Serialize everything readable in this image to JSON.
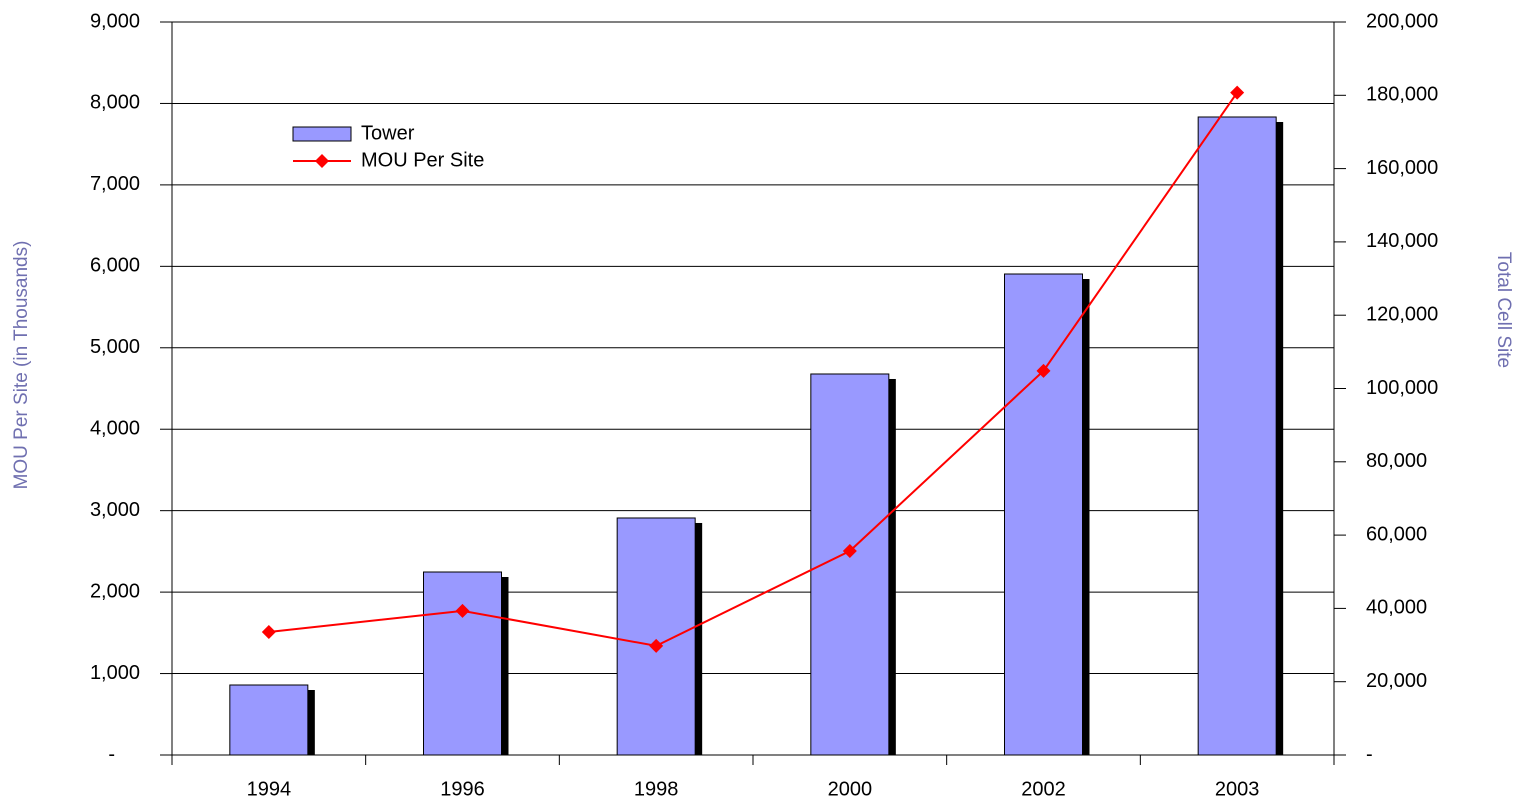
{
  "chart_data": {
    "type": "bar-line",
    "categories": [
      "1994",
      "1996",
      "1998",
      "2000",
      "2002",
      "2003"
    ],
    "y_label": "MOU Per Site (in Thousands)",
    "y2_label": "Total Cell Site",
    "series": [
      {
        "name": "Tower",
        "type": "bar",
        "axis": "y2",
        "color": "#9999ff",
        "values": [
          19100,
          49930,
          64670,
          103960,
          131240,
          174080
        ]
      },
      {
        "name": "MOU Per Site",
        "type": "line",
        "axis": "y",
        "color": "#ff0000",
        "values": [
          1510,
          1770,
          1340,
          2505,
          4717,
          8133
        ]
      }
    ],
    "ylim": [
      0,
      9000
    ],
    "yticks": [
      {
        "value": 0,
        "label": "-"
      },
      {
        "value": 1000,
        "label": "1,000"
      },
      {
        "value": 2000,
        "label": "2,000"
      },
      {
        "value": 3000,
        "label": "3,000"
      },
      {
        "value": 4000,
        "label": "4,000"
      },
      {
        "value": 5000,
        "label": "5,000"
      },
      {
        "value": 6000,
        "label": "6,000"
      },
      {
        "value": 7000,
        "label": "7,000"
      },
      {
        "value": 8000,
        "label": "8,000"
      },
      {
        "value": 9000,
        "label": "9,000"
      }
    ],
    "y2lim": [
      0,
      200000
    ],
    "y2ticks": [
      {
        "value": 0,
        "label": "-"
      },
      {
        "value": 20000,
        "label": "20,000"
      },
      {
        "value": 40000,
        "label": "40,000"
      },
      {
        "value": 60000,
        "label": "60,000"
      },
      {
        "value": 80000,
        "label": "80,000"
      },
      {
        "value": 100000,
        "label": "100,000"
      },
      {
        "value": 120000,
        "label": "120,000"
      },
      {
        "value": 140000,
        "label": "140,000"
      },
      {
        "value": 160000,
        "label": "160,000"
      },
      {
        "value": 180000,
        "label": "180,000"
      },
      {
        "value": 200000,
        "label": "200,000"
      }
    ],
    "grid": true
  }
}
